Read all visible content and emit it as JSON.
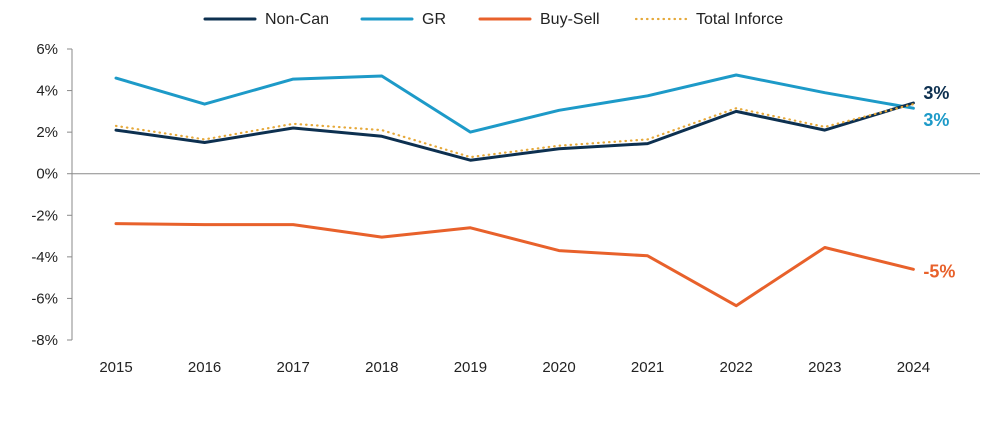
{
  "chart_data": {
    "type": "line",
    "title": "",
    "xlabel": "",
    "ylabel": "",
    "categories": [
      "2015",
      "2016",
      "2017",
      "2018",
      "2019",
      "2020",
      "2021",
      "2022",
      "2023",
      "2024"
    ],
    "ylim": [
      -8,
      6
    ],
    "yticks": [
      6,
      4,
      2,
      0,
      -2,
      -4,
      -6,
      -8
    ],
    "ytick_labels": [
      "6%",
      "4%",
      "2%",
      "0%",
      "-2%",
      "-4%",
      "-6%",
      "-8%"
    ],
    "grid": false,
    "legend_position": "top-center",
    "series": [
      {
        "name": "Non-Can",
        "color": "#0d3050",
        "style": "solid",
        "values": [
          2.1,
          1.5,
          2.2,
          1.8,
          0.65,
          1.2,
          1.45,
          3.0,
          2.1,
          3.4
        ],
        "end_label": "3%"
      },
      {
        "name": "GR",
        "color": "#1d9ac8",
        "style": "solid",
        "values": [
          4.6,
          3.35,
          4.55,
          4.7,
          2.0,
          3.05,
          3.75,
          4.75,
          3.9,
          3.15
        ],
        "end_label": "3%"
      },
      {
        "name": "Buy-Sell",
        "color": "#e8612b",
        "style": "solid",
        "values": [
          -2.4,
          -2.45,
          -2.45,
          -3.05,
          -2.6,
          -3.7,
          -3.95,
          -6.35,
          -3.55,
          -4.6
        ],
        "end_label": "-5%"
      },
      {
        "name": "Total Inforce",
        "color": "#e6a93a",
        "style": "dotted",
        "values": [
          2.3,
          1.65,
          2.4,
          2.1,
          0.8,
          1.35,
          1.65,
          3.15,
          2.25,
          3.35
        ],
        "end_label": ""
      }
    ]
  }
}
